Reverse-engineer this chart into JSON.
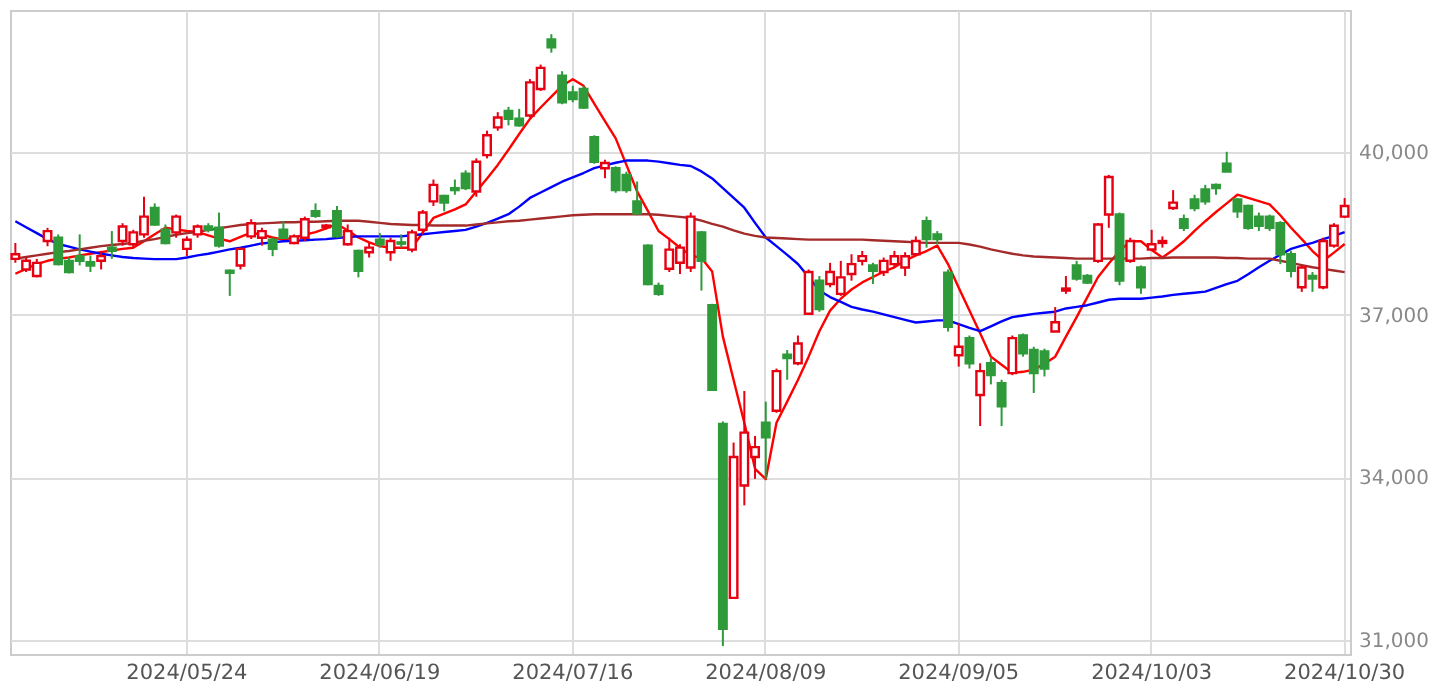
{
  "chart_data": {
    "type": "candlestick",
    "categories": [
      null,
      null,
      null,
      null,
      null,
      null,
      null,
      null,
      null,
      null,
      null,
      null,
      null,
      null,
      null,
      null,
      "2024/05/24",
      null,
      null,
      null,
      null,
      null,
      null,
      null,
      null,
      null,
      null,
      null,
      null,
      null,
      null,
      null,
      null,
      null,
      "2024/06/19",
      null,
      null,
      null,
      null,
      null,
      null,
      null,
      null,
      null,
      null,
      null,
      null,
      null,
      null,
      null,
      null,
      null,
      "2024/07/16",
      null,
      null,
      null,
      null,
      null,
      null,
      null,
      null,
      null,
      null,
      null,
      null,
      null,
      null,
      null,
      null,
      null,
      "2024/08/09",
      null,
      null,
      null,
      null,
      null,
      null,
      null,
      null,
      null,
      null,
      null,
      null,
      null,
      null,
      null,
      null,
      null,
      "2024/09/05",
      null,
      null,
      null,
      null,
      null,
      null,
      null,
      null,
      null,
      null,
      null,
      null,
      null,
      null,
      null,
      null,
      null,
      "2024/10/03",
      null,
      null,
      null,
      null,
      null,
      null,
      null,
      null,
      null,
      null,
      null,
      null,
      null,
      null,
      null,
      null,
      null,
      "2024/10/30"
    ],
    "ohlc": [
      [
        38036,
        38328,
        37963,
        38121
      ],
      [
        37840,
        38060,
        37792,
        38000
      ],
      [
        37718,
        38036,
        37694,
        37962
      ],
      [
        38365,
        38609,
        38268,
        38548
      ],
      [
        38426,
        38487,
        37914,
        37938
      ],
      [
        37999,
        38060,
        37767,
        37792
      ],
      [
        38085,
        38487,
        37914,
        38000
      ],
      [
        37975,
        38097,
        37792,
        37914
      ],
      [
        38000,
        38182,
        37840,
        38085
      ],
      [
        38243,
        38548,
        38036,
        38182
      ],
      [
        38365,
        38694,
        38280,
        38633
      ],
      [
        38304,
        38572,
        38243,
        38524
      ],
      [
        38487,
        39182,
        38426,
        38816
      ],
      [
        38975,
        39060,
        38646,
        38670
      ],
      [
        38572,
        38670,
        38304,
        38328
      ],
      [
        38524,
        38853,
        38426,
        38816
      ],
      [
        38219,
        38450,
        38085,
        38389
      ],
      [
        38487,
        38670,
        38426,
        38633
      ],
      [
        38633,
        38694,
        38524,
        38572
      ],
      [
        38609,
        38890,
        38243,
        38280
      ],
      [
        37816,
        37840,
        37352,
        37779
      ],
      [
        37914,
        38243,
        37840,
        38219
      ],
      [
        38450,
        38768,
        38402,
        38694
      ],
      [
        38426,
        38609,
        38280,
        38548
      ],
      [
        38389,
        38426,
        38085,
        38219
      ],
      [
        38572,
        38731,
        38402,
        38426
      ],
      [
        38328,
        38487,
        38304,
        38450
      ],
      [
        38426,
        38816,
        38365,
        38768
      ],
      [
        38914,
        39060,
        38792,
        38829
      ],
      [
        38620,
        38680,
        38580,
        38650
      ],
      [
        38914,
        39011,
        38426,
        38450
      ],
      [
        38304,
        38670,
        38280,
        38548
      ],
      [
        38182,
        38206,
        37694,
        37816
      ],
      [
        38158,
        38328,
        38060,
        38243
      ],
      [
        38389,
        38511,
        38243,
        38304
      ],
      [
        38158,
        38426,
        37999,
        38365
      ],
      [
        38340,
        38487,
        38243,
        38316
      ],
      [
        38206,
        38572,
        38158,
        38524
      ],
      [
        38572,
        38938,
        38487,
        38890
      ],
      [
        39097,
        39500,
        39012,
        39402
      ],
      [
        39195,
        39219,
        38914,
        39073
      ],
      [
        39341,
        39500,
        39219,
        39305
      ],
      [
        39609,
        39670,
        39305,
        39341
      ],
      [
        39280,
        39890,
        39182,
        39829
      ],
      [
        39951,
        40402,
        39890,
        40317
      ],
      [
        40463,
        40744,
        40402,
        40646
      ],
      [
        40768,
        40842,
        40500,
        40622
      ],
      [
        40622,
        40805,
        40476,
        40500
      ],
      [
        40683,
        41354,
        40646,
        41293
      ],
      [
        41171,
        41622,
        41134,
        41561
      ],
      [
        42086,
        42184,
        41842,
        41940
      ],
      [
        41415,
        41500,
        40890,
        40927
      ],
      [
        41110,
        41232,
        40927,
        40988
      ],
      [
        41171,
        41232,
        40805,
        40830
      ],
      [
        40280,
        40317,
        39792,
        39829
      ],
      [
        39707,
        39866,
        39524,
        39805
      ],
      [
        39707,
        39744,
        39256,
        39305
      ],
      [
        39585,
        39646,
        39256,
        39305
      ],
      [
        39097,
        39463,
        38841,
        38877
      ],
      [
        38280,
        38304,
        37548,
        37572
      ],
      [
        37536,
        37597,
        37353,
        37389
      ],
      [
        37853,
        38426,
        37792,
        38206
      ],
      [
        37963,
        38304,
        37755,
        38243
      ],
      [
        37877,
        38890,
        37792,
        38816
      ],
      [
        38524,
        38548,
        37450,
        37999
      ],
      [
        37182,
        37206,
        35596,
        35620
      ],
      [
        34986,
        35034,
        30886,
        31204
      ],
      [
        31777,
        34644,
        31777,
        34376
      ],
      [
        33851,
        35596,
        33485,
        34827
      ],
      [
        34376,
        34766,
        33973,
        34559
      ],
      [
        35010,
        35400,
        33973,
        34742
      ],
      [
        35230,
        36010,
        35193,
        35962
      ],
      [
        36267,
        36352,
        35803,
        36206
      ],
      [
        36108,
        36620,
        36071,
        36474
      ],
      [
        37023,
        37840,
        36999,
        37792
      ],
      [
        37633,
        37718,
        37059,
        37108
      ],
      [
        37572,
        37962,
        37511,
        37792
      ],
      [
        37389,
        37999,
        37352,
        37694
      ],
      [
        37755,
        38121,
        37633,
        37938
      ],
      [
        37999,
        38182,
        37914,
        38085
      ],
      [
        37914,
        37963,
        37572,
        37816
      ],
      [
        37792,
        38060,
        37718,
        37999
      ],
      [
        37938,
        38182,
        37877,
        38084
      ],
      [
        37877,
        38158,
        37718,
        38084
      ],
      [
        38121,
        38450,
        38085,
        38365
      ],
      [
        38731,
        38816,
        38243,
        38402
      ],
      [
        38487,
        38548,
        38304,
        38402
      ],
      [
        37779,
        37840,
        36694,
        36779
      ],
      [
        36255,
        36840,
        36047,
        36413
      ],
      [
        36572,
        36620,
        36010,
        36108
      ],
      [
        35523,
        36108,
        34949,
        35962
      ],
      [
        36108,
        36206,
        35718,
        35889
      ],
      [
        35742,
        35803,
        34949,
        35315
      ],
      [
        35925,
        36620,
        35888,
        36572
      ],
      [
        36620,
        36657,
        36230,
        36291
      ],
      [
        36352,
        36413,
        35559,
        35925
      ],
      [
        36328,
        36377,
        35864,
        36010
      ],
      [
        36694,
        37145,
        36694,
        36865
      ],
      [
        37450,
        37718,
        37389,
        37487
      ],
      [
        37914,
        37999,
        37633,
        37670
      ],
      [
        37718,
        37755,
        37572,
        37597
      ],
      [
        37999,
        38694,
        37962,
        38670
      ],
      [
        38853,
        39585,
        38609,
        39548
      ],
      [
        38853,
        38890,
        37548,
        37633
      ],
      [
        38001,
        38426,
        37963,
        38365
      ],
      [
        37877,
        37914,
        37389,
        37511
      ],
      [
        38207,
        38572,
        38182,
        38304
      ],
      [
        38329,
        38450,
        38243,
        38365
      ],
      [
        38975,
        39304,
        38938,
        39073
      ],
      [
        38768,
        38853,
        38548,
        38609
      ],
      [
        39134,
        39219,
        38914,
        38975
      ],
      [
        39317,
        39402,
        39036,
        39097
      ],
      [
        39402,
        39426,
        39219,
        39341
      ],
      [
        39792,
        40012,
        39646,
        39646
      ],
      [
        39134,
        39158,
        38792,
        38914
      ],
      [
        39012,
        39036,
        38572,
        38609
      ],
      [
        38816,
        38890,
        38548,
        38646
      ],
      [
        38816,
        38853,
        38548,
        38609
      ],
      [
        38694,
        38731,
        37938,
        38121
      ],
      [
        38121,
        38182,
        37694,
        37816
      ],
      [
        37511,
        37914,
        37426,
        37877
      ],
      [
        37719,
        37792,
        37426,
        37670
      ],
      [
        37511,
        38426,
        37474,
        38365
      ],
      [
        38280,
        38694,
        38243,
        38646
      ],
      [
        38816,
        39158,
        38792,
        39012
      ]
    ],
    "series": [
      {
        "type": "line",
        "color": "#ff0000",
        "values": [
          37760,
          37850,
          37940,
          38000,
          38040,
          38060,
          38100,
          38130,
          38160,
          38190,
          38220,
          38240,
          38360,
          38490,
          38610,
          38580,
          38550,
          38530,
          38470,
          38410,
          38360,
          38440,
          38520,
          38480,
          38430,
          38390,
          38430,
          38480,
          38530,
          38600,
          38680,
          38560,
          38430,
          38340,
          38270,
          38240,
          38240,
          38240,
          38520,
          38790,
          38870,
          38950,
          39040,
          39280,
          39520,
          39770,
          40050,
          40340,
          40620,
          40830,
          41030,
          41230,
          41350,
          41230,
          40900,
          40580,
          40260,
          39770,
          39280,
          38920,
          38550,
          38400,
          38240,
          38100,
          38050,
          37800,
          36600,
          35800,
          35010,
          34160,
          33970,
          35010,
          35400,
          35800,
          36230,
          36700,
          37080,
          37300,
          37470,
          37600,
          37700,
          37800,
          37880,
          38000,
          38100,
          38180,
          38280,
          37940,
          37500,
          37080,
          36660,
          36230,
          36080,
          35930,
          35950,
          35990,
          36100,
          36230,
          36600,
          36960,
          37330,
          37700,
          37950,
          38180,
          38360,
          38360,
          38200,
          38060,
          38200,
          38360,
          38550,
          38730,
          38900,
          39060,
          39220,
          39160,
          39100,
          39040,
          38840,
          38610,
          38400,
          38180,
          38000,
          38150,
          38310
        ]
      },
      {
        "type": "line",
        "color": "#0000ff",
        "values": [
          38730,
          38620,
          38510,
          38400,
          38310,
          38260,
          38210,
          38170,
          38130,
          38100,
          38070,
          38050,
          38040,
          38030,
          38030,
          38030,
          38060,
          38100,
          38130,
          38170,
          38210,
          38240,
          38280,
          38320,
          38340,
          38360,
          38370,
          38380,
          38390,
          38400,
          38420,
          38440,
          38450,
          38450,
          38450,
          38450,
          38450,
          38470,
          38490,
          38510,
          38530,
          38550,
          38570,
          38630,
          38700,
          38780,
          38860,
          39000,
          39160,
          39260,
          39360,
          39460,
          39540,
          39620,
          39710,
          39760,
          39810,
          39850,
          39850,
          39850,
          39830,
          39800,
          39770,
          39750,
          39650,
          39520,
          39340,
          39160,
          38980,
          38700,
          38430,
          38270,
          38110,
          37940,
          37700,
          37450,
          37330,
          37240,
          37150,
          37100,
          37060,
          37010,
          36960,
          36910,
          36860,
          36880,
          36900,
          36900,
          36830,
          36760,
          36700,
          36790,
          36880,
          36960,
          36990,
          37020,
          37040,
          37060,
          37120,
          37150,
          37180,
          37230,
          37280,
          37300,
          37300,
          37300,
          37320,
          37340,
          37370,
          37390,
          37410,
          37430,
          37500,
          37570,
          37630,
          37750,
          37880,
          38000,
          38110,
          38220,
          38280,
          38330,
          38400,
          38460,
          38530
        ]
      },
      {
        "type": "line",
        "color": "#a52a2a",
        "values": [
          38040,
          38070,
          38100,
          38130,
          38160,
          38180,
          38210,
          38240,
          38270,
          38290,
          38310,
          38330,
          38370,
          38400,
          38440,
          38480,
          38510,
          38530,
          38570,
          38600,
          38630,
          38660,
          38680,
          38690,
          38700,
          38710,
          38710,
          38720,
          38720,
          38730,
          38740,
          38740,
          38740,
          38720,
          38700,
          38680,
          38670,
          38660,
          38660,
          38650,
          38650,
          38650,
          38650,
          38670,
          38690,
          38710,
          38730,
          38740,
          38760,
          38780,
          38800,
          38820,
          38840,
          38850,
          38860,
          38860,
          38860,
          38860,
          38860,
          38860,
          38850,
          38830,
          38810,
          38790,
          38740,
          38680,
          38630,
          38560,
          38500,
          38460,
          38430,
          38420,
          38410,
          38400,
          38390,
          38390,
          38390,
          38390,
          38390,
          38390,
          38380,
          38370,
          38360,
          38350,
          38340,
          38330,
          38330,
          38330,
          38330,
          38300,
          38260,
          38210,
          38170,
          38130,
          38100,
          38080,
          38070,
          38060,
          38050,
          38040,
          38040,
          38040,
          38040,
          38040,
          38040,
          38040,
          38050,
          38050,
          38060,
          38060,
          38060,
          38060,
          38060,
          38050,
          38050,
          38040,
          38040,
          38040,
          38000,
          37960,
          37920,
          37880,
          37850,
          37820,
          37790
        ]
      }
    ],
    "ylim": [
      30740,
      42630
    ],
    "yticks": [
      {
        "value": 31000,
        "label": "31,000"
      },
      {
        "value": 34000,
        "label": "34,000"
      },
      {
        "value": 37000,
        "label": "37,000"
      },
      {
        "value": 40000,
        "label": "40,000"
      }
    ],
    "grid": true
  }
}
